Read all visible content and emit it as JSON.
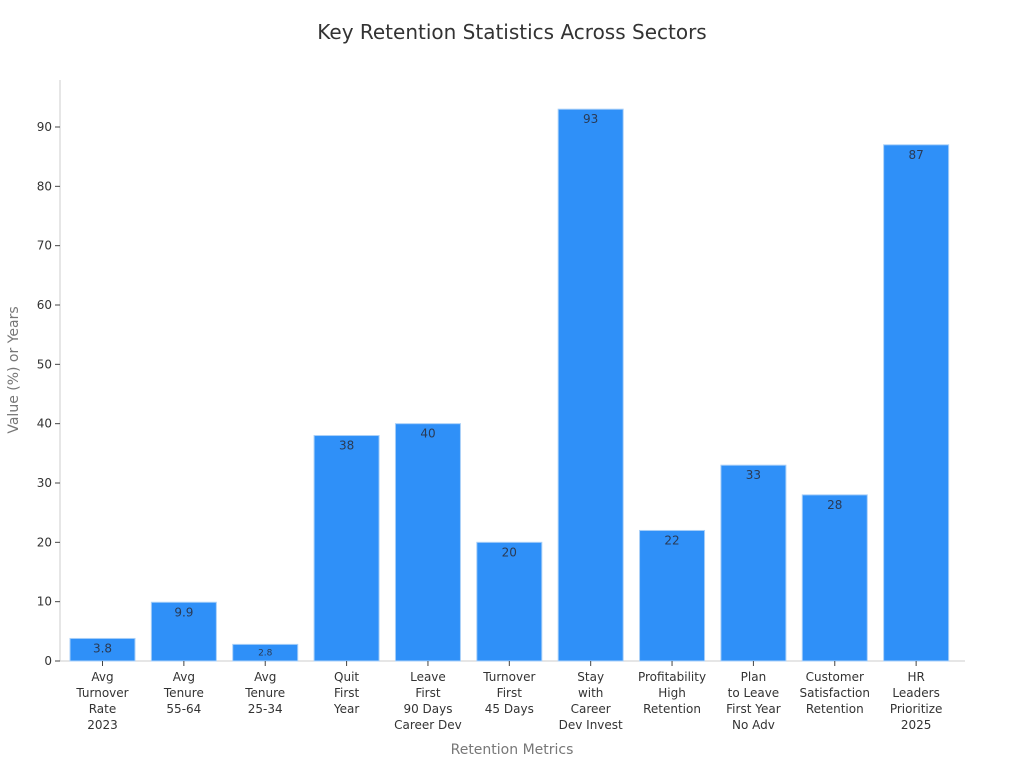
{
  "chart_data": {
    "type": "bar",
    "title": "Key Retention Statistics Across Sectors",
    "xlabel": "Retention Metrics",
    "ylabel": "Value (%) or Years",
    "ylim": [
      0,
      95
    ],
    "yticks": [
      0,
      10,
      20,
      30,
      40,
      50,
      60,
      70,
      80,
      90
    ],
    "grid": false,
    "legend": null,
    "bar_color": "#2f90f8",
    "categories": [
      [
        "Avg",
        "Turnover",
        "Rate",
        "2023"
      ],
      [
        "Avg",
        "Tenure",
        "55-64"
      ],
      [
        "Avg",
        "Tenure",
        "25-34"
      ],
      [
        "Quit",
        "First",
        "Year"
      ],
      [
        "Leave",
        "First",
        "90 Days",
        "Career Dev"
      ],
      [
        "Turnover",
        "First",
        "45 Days"
      ],
      [
        "Stay",
        "with",
        "Career",
        "Dev Invest"
      ],
      [
        "Profitability",
        "High",
        "Retention"
      ],
      [
        "Plan",
        "to Leave",
        "First Year",
        "No Adv"
      ],
      [
        "Customer",
        "Satisfaction",
        "Retention"
      ],
      [
        "HR",
        "Leaders",
        "Prioritize",
        "2025"
      ]
    ],
    "values": [
      3.8,
      9.9,
      2.8,
      38,
      40,
      20,
      93,
      22,
      33,
      28,
      87
    ],
    "value_labels": [
      "3.8",
      "9.9",
      "2.8",
      "38",
      "40",
      "20",
      "93",
      "22",
      "33",
      "28",
      "87"
    ]
  }
}
